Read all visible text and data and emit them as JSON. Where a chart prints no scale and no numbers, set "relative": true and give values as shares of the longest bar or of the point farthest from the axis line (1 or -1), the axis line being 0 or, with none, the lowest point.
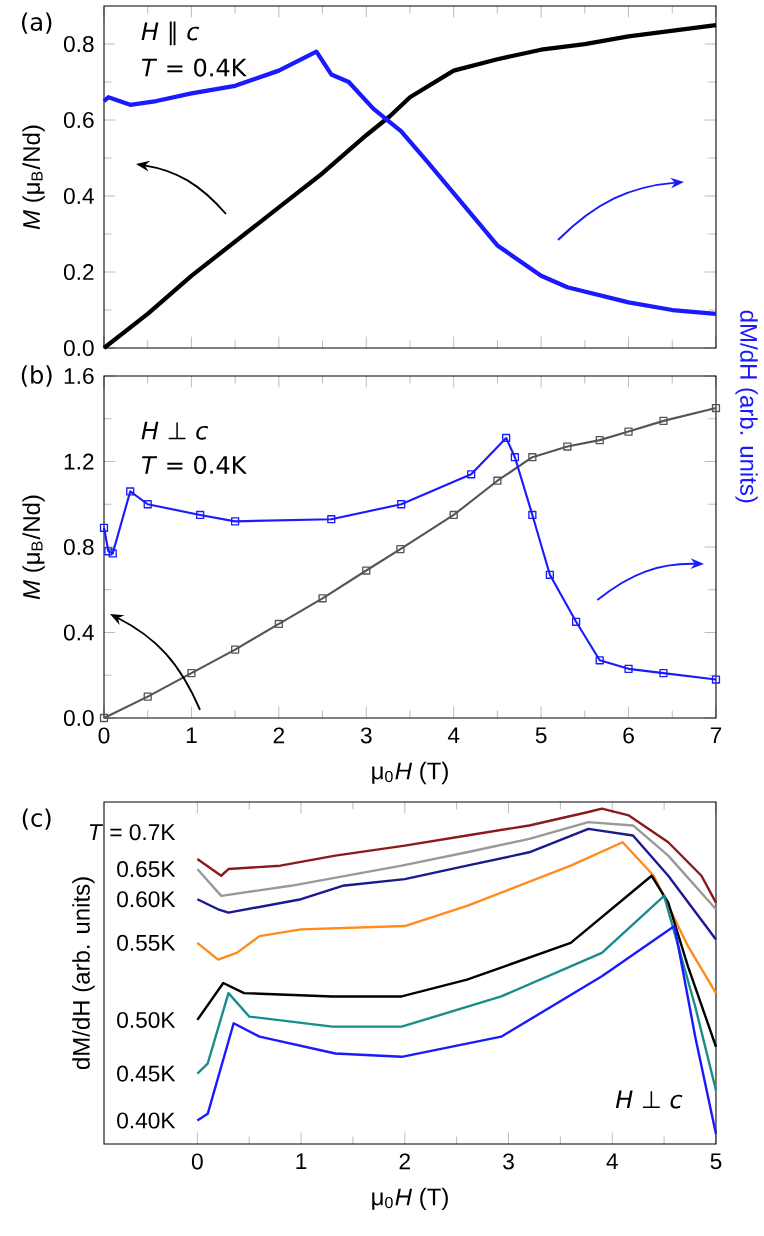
{
  "chart_data": [
    {
      "type": "line",
      "annotations": [
        "(a)",
        "*H* ∥ *c*",
        "*T* = 0.4K"
      ],
      "ylabel": "*M* (μ$_{B}$/Nd)",
      "xlim": [
        0,
        7
      ],
      "xticks": [
        0,
        1,
        2,
        3,
        4,
        5,
        6,
        7
      ],
      "ylim": [
        0,
        0.9
      ],
      "yticks": [
        {
          "value": 0,
          "label": "0.0"
        },
        0.2,
        0.4,
        0.6,
        0.8
      ],
      "tick_labels": "y",
      "series": [
        {
          "color": "#000000",
          "x": [
            0,
            0.5,
            1,
            1.5,
            2,
            2.5,
            3,
            3.27,
            3.5,
            4,
            4.5,
            5,
            5.5,
            6,
            6.5,
            7
          ],
          "values": [
            0,
            0.09,
            0.19,
            0.28,
            0.37,
            0.46,
            0.56,
            0.61,
            0.66,
            0.73,
            0.76,
            0.785,
            0.8,
            0.82,
            0.835,
            0.85
          ]
        },
        {
          "color": "#1a1aff",
          "x": [
            0,
            0.05,
            0.3,
            0.6,
            1,
            1.5,
            2,
            2.43,
            2.6,
            2.8,
            3.08,
            3.4,
            3.7,
            4.1,
            4.5,
            5,
            5.3,
            6,
            6.5,
            7
          ],
          "values": [
            0.65,
            0.66,
            0.64,
            0.65,
            0.67,
            0.69,
            0.73,
            0.78,
            0.72,
            0.7,
            0.63,
            0.57,
            0.49,
            0.38,
            0.27,
            0.19,
            0.16,
            0.12,
            0.1,
            0.09
          ]
        }
      ]
    },
    {
      "type": "line",
      "annotations": [
        "(b)",
        "*H* ⊥ *c*",
        "*T* = 0.4K"
      ],
      "xlabel": "μ$_{0}$*H* (T)",
      "ylabel": "*M* (μ$_{B}$/Nd)",
      "y2label": "dM/dH (arb. units)",
      "xlim": [
        0,
        7
      ],
      "xticks": [
        0,
        1,
        2,
        3,
        4,
        5,
        6,
        7
      ],
      "ylim": [
        0,
        1.6
      ],
      "yticks": [
        {
          "value": 0,
          "label": "0.0"
        },
        0.4,
        0.8,
        1.2,
        1.6
      ],
      "series": [
        {
          "color": "#555555",
          "marker": "square",
          "x": [
            0,
            0.5,
            1,
            1.5,
            2,
            2.5,
            3,
            3.39,
            4,
            4.5,
            4.9,
            5.3,
            5.67,
            6,
            6.4,
            7
          ],
          "values": [
            0,
            0.1,
            0.21,
            0.32,
            0.44,
            0.56,
            0.69,
            0.79,
            0.95,
            1.11,
            1.22,
            1.27,
            1.3,
            1.34,
            1.39,
            1.45
          ]
        },
        {
          "color": "#1a1aff",
          "marker": "square",
          "x": [
            0,
            0.05,
            0.1,
            0.3,
            0.5,
            1.1,
            1.5,
            2.6,
            3.4,
            4.2,
            4.6,
            4.7,
            4.9,
            5.1,
            5.4,
            5.67,
            6,
            6.4,
            7
          ],
          "values": [
            0.89,
            0.78,
            0.77,
            1.06,
            1.0,
            0.95,
            0.92,
            0.93,
            1.0,
            1.14,
            1.31,
            1.22,
            0.95,
            0.67,
            0.45,
            0.27,
            0.23,
            0.21,
            0.18
          ]
        }
      ]
    },
    {
      "type": "line",
      "relative": true,
      "annotations": [
        "(c)",
        "*H* ⊥ *c*"
      ],
      "xlabel": "μ$_{0}$*H* (T)",
      "ylabel": "dM/dH (arb. units)",
      "xlim": [
        -0.9,
        5
      ],
      "xticks": [
        0,
        1,
        2,
        3,
        4,
        5
      ],
      "tick_labels": "x",
      "series": [
        {
          "name": "*T* = 0.7K",
          "color": "#8b1a1a",
          "x": [
            0,
            0.23,
            0.3,
            0.8,
            1.33,
            2,
            2.6,
            3.2,
            3.77,
            3.9,
            4.16,
            4.54,
            4.86,
            5
          ],
          "values": [
            0.85,
            0.8,
            0.82,
            0.83,
            0.86,
            0.89,
            0.92,
            0.95,
            0.99,
            1.0,
            0.98,
            0.9,
            0.8,
            0.72
          ]
        },
        {
          "name": "0.65K",
          "color": "#999999",
          "x": [
            0,
            0.23,
            0.9,
            1.97,
            2.6,
            3.2,
            3.77,
            4.2,
            4.54,
            5
          ],
          "values": [
            0.82,
            0.74,
            0.77,
            0.83,
            0.87,
            0.91,
            0.96,
            0.95,
            0.86,
            0.7
          ]
        },
        {
          "name": "0.60K",
          "color": "#1a1a8c",
          "x": [
            0,
            0.2,
            0.3,
            1.0,
            1.4,
            2.0,
            2.6,
            3.2,
            3.77,
            4.2,
            4.54,
            5
          ],
          "values": [
            0.73,
            0.7,
            0.69,
            0.73,
            0.77,
            0.79,
            0.83,
            0.87,
            0.94,
            0.92,
            0.8,
            0.61
          ]
        },
        {
          "name": "0.55K",
          "color": "#ff8c1a",
          "x": [
            0,
            0.2,
            0.38,
            0.6,
            1,
            2,
            2.6,
            3.6,
            4.1,
            4.4,
            4.73,
            5
          ],
          "values": [
            0.6,
            0.55,
            0.57,
            0.62,
            0.64,
            0.65,
            0.71,
            0.83,
            0.9,
            0.8,
            0.59,
            0.45
          ]
        },
        {
          "name": "0.50K",
          "color": "#000000",
          "x": [
            0,
            0.25,
            0.45,
            1.3,
            1.97,
            2.6,
            3.6,
            4.38,
            4.54,
            4.73,
            5
          ],
          "values": [
            0.37,
            0.48,
            0.45,
            0.44,
            0.44,
            0.49,
            0.6,
            0.8,
            0.72,
            0.53,
            0.29
          ]
        },
        {
          "name": "0.45K",
          "color": "#1a8c8c",
          "x": [
            0,
            0.1,
            0.3,
            0.5,
            1.3,
            1.97,
            2.93,
            3.9,
            4.5,
            4.8,
            5
          ],
          "values": [
            0.21,
            0.24,
            0.45,
            0.38,
            0.35,
            0.35,
            0.44,
            0.57,
            0.74,
            0.41,
            0.16
          ]
        },
        {
          "name": "0.40K",
          "color": "#1a1aff",
          "x": [
            0,
            0.1,
            0.35,
            0.6,
            1.33,
            1.97,
            2.93,
            3.9,
            4.6,
            4.8,
            5
          ],
          "values": [
            0.07,
            0.09,
            0.36,
            0.32,
            0.27,
            0.26,
            0.32,
            0.5,
            0.65,
            0.32,
            0.03
          ]
        }
      ]
    }
  ]
}
